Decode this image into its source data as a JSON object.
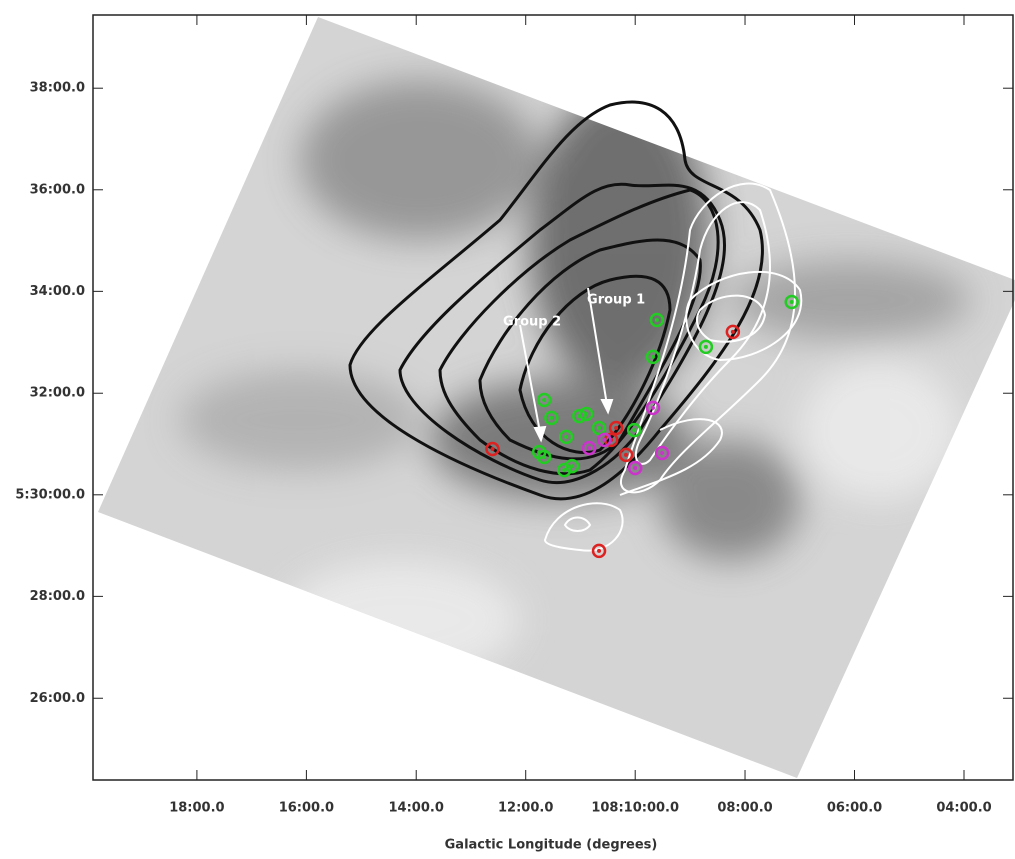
{
  "chart_data": {
    "type": "scatter",
    "xlabel": "Galactic Longitude (degrees)",
    "xlim": [
      108.3316,
      108.0518
    ],
    "ylim": [
      5.4065,
      5.6573
    ],
    "xticks": [
      {
        "value": 108.3,
        "label": "18:00.0"
      },
      {
        "value": 108.2667,
        "label": "16:00.0"
      },
      {
        "value": 108.2333,
        "label": "14:00.0"
      },
      {
        "value": 108.2,
        "label": "12:00.0"
      },
      {
        "value": 108.1667,
        "label": "108:10:00.0"
      },
      {
        "value": 108.1333,
        "label": "08:00.0"
      },
      {
        "value": 108.1,
        "label": "06:00.0"
      },
      {
        "value": 108.0667,
        "label": "04:00.0"
      }
    ],
    "yticks": [
      {
        "value": 5.6333,
        "label": "38:00.0"
      },
      {
        "value": 5.6,
        "label": "36:00.0"
      },
      {
        "value": 5.5667,
        "label": "34:00.0"
      },
      {
        "value": 5.5333,
        "label": "32:00.0"
      },
      {
        "value": 5.5,
        "label": "5:30:00.0"
      },
      {
        "value": 5.4667,
        "label": "28:00.0"
      },
      {
        "value": 5.4333,
        "label": "26:00.0"
      }
    ],
    "annotations": [
      {
        "text": "Group 1",
        "x": 108.1725,
        "y": 5.518
      },
      {
        "text": "Group 2",
        "x": 108.1944,
        "y": 5.5124
      }
    ],
    "series": [
      {
        "color": "#22cc22",
        "x": [
          108.1944,
          108.1922,
          108.1959,
          108.1944,
          108.1877,
          108.1837,
          108.1816,
          108.1883,
          108.1859,
          108.1601,
          108.1613,
          108.1452,
          108.1191,
          108.167,
          108.1777
        ],
        "values": [
          5.5311,
          5.5252,
          5.514,
          5.5124,
          5.519,
          5.5258,
          5.5265,
          5.5081,
          5.5094,
          5.5573,
          5.5452,
          5.5485,
          5.5632,
          5.5212,
          5.5219
        ]
      },
      {
        "color": "#dd2222",
        "x": [
          108.2101,
          108.1725,
          108.174,
          108.1695,
          108.137,
          108.1777
        ],
        "values": [
          5.515,
          5.5219,
          5.518,
          5.5131,
          5.5534,
          5.4816
        ]
      },
      {
        "color": "#cc33cc",
        "x": [
          108.1613,
          108.1585,
          108.1667,
          108.1807,
          108.1761
        ],
        "values": [
          5.5285,
          5.5137,
          5.5088,
          5.5153,
          5.518
        ]
      }
    ]
  }
}
